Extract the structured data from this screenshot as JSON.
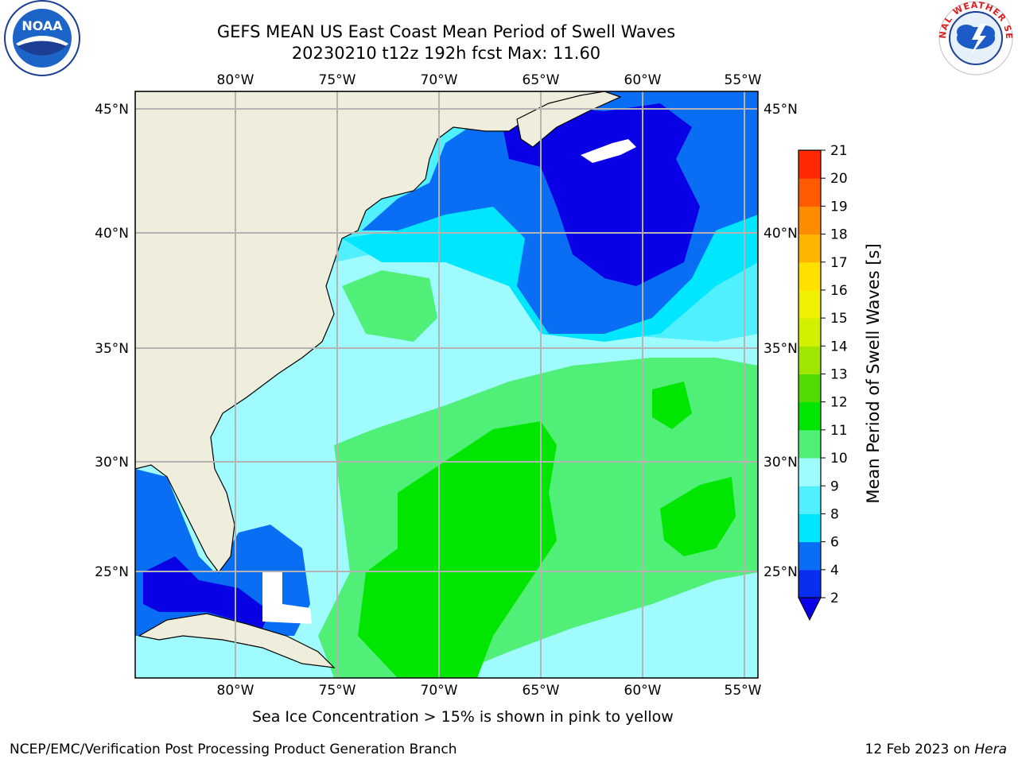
{
  "header": {
    "title_line1": "GEFS MEAN US East Coast Mean Period of Swell Waves",
    "title_line2": "20230210 t12z 192h fcst   Max: 11.60"
  },
  "logos": {
    "left": "NOAA",
    "right": "NATIONAL WEATHER SERVICE"
  },
  "axes": {
    "lon_labels": [
      "80°W",
      "75°W",
      "70°W",
      "65°W",
      "60°W",
      "55°W"
    ],
    "lat_labels": [
      "45°N",
      "40°N",
      "35°N",
      "30°N",
      "25°N"
    ]
  },
  "colorbar": {
    "label": "Mean Period of Swell Waves [s]",
    "ticks": [
      "2",
      "4",
      "6",
      "8",
      "9",
      "10",
      "11",
      "12",
      "13",
      "14",
      "15",
      "16",
      "17",
      "18",
      "19",
      "20",
      "21"
    ],
    "colors": [
      "#0a2ef0",
      "#0a6ef5",
      "#00e6ff",
      "#50f0ff",
      "#a0fbff",
      "#50f078",
      "#00e600",
      "#50dc00",
      "#a0e600",
      "#d2f000",
      "#f0f000",
      "#ffe100",
      "#ffb400",
      "#ff8c00",
      "#ff5a00",
      "#ff2800",
      "#ff0000"
    ],
    "under_color": "#0a00e6"
  },
  "footer": {
    "note": "Sea Ice Concentration > 15% is shown in pink to yellow",
    "credit_left": "NCEP/EMC/Verification Post Processing Product Generation Branch",
    "credit_date": "12 Feb 2023 on ",
    "credit_machine": "Hera"
  },
  "colors": {
    "land": "#efeedd",
    "grid": "#b4b4b4",
    "period_2_4": "#0a6ef5",
    "period_under2": "#0a00e6",
    "period_4_6": "#00e6ff",
    "period_6_8": "#50f0ff",
    "period_8_9": "#a0fbff",
    "period_9_10": "#50f078",
    "period_10_11": "#00e600"
  }
}
